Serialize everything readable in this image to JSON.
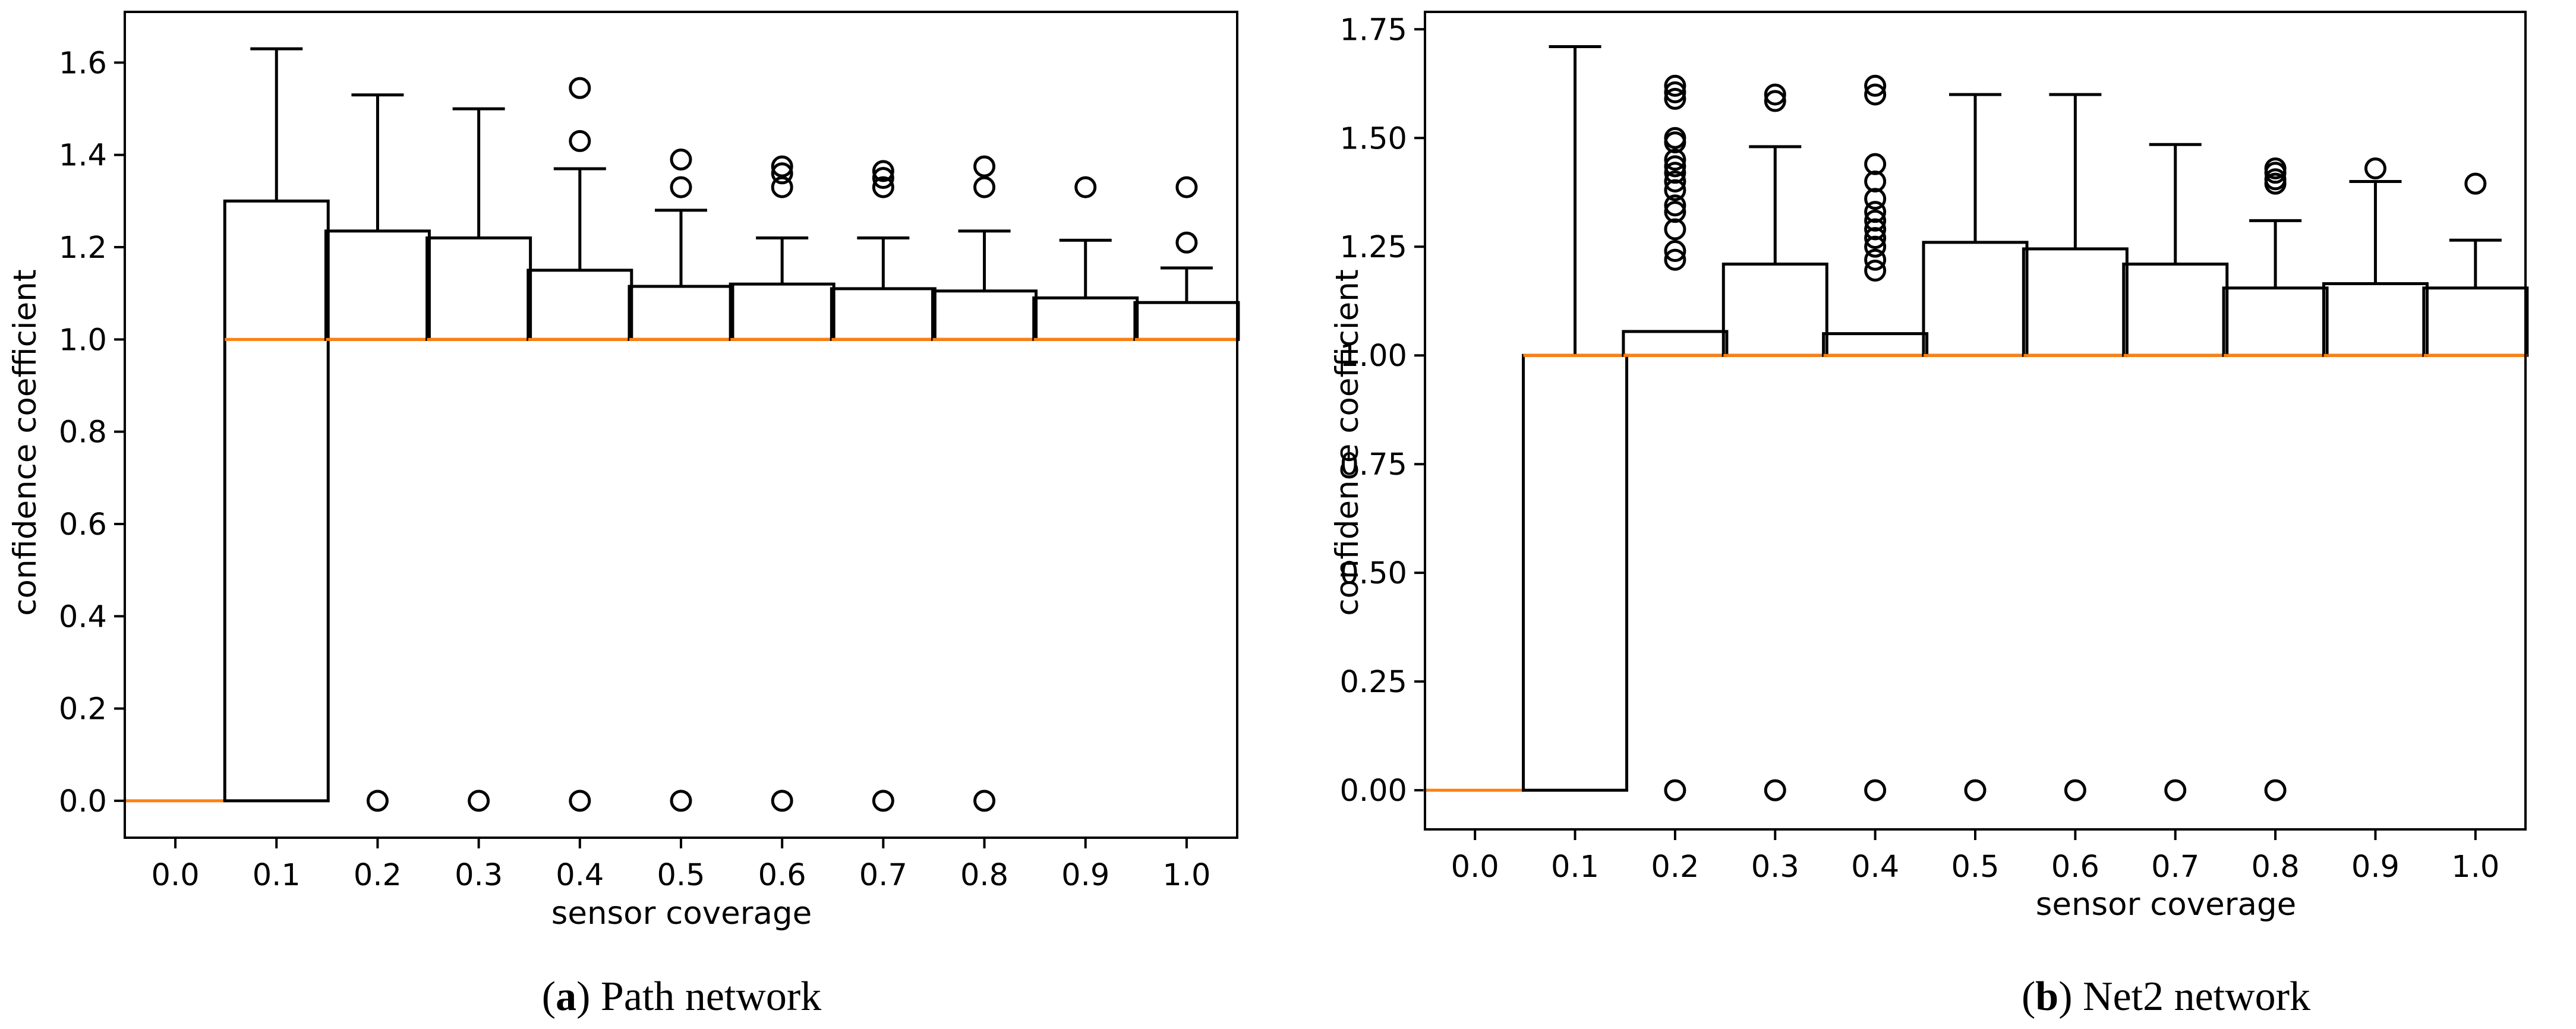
{
  "chart_data": [
    {
      "type": "boxplot",
      "caption": {
        "open": "(",
        "letter": "a",
        "close": ")",
        "text": " Path network"
      },
      "xlabel": "sensor coverage",
      "ylabel": "confidence coefficient",
      "ylim": [
        -0.08,
        1.71
      ],
      "yticks": [
        0.0,
        0.2,
        0.4,
        0.6,
        0.8,
        1.0,
        1.2,
        1.4,
        1.6
      ],
      "ytick_labels": [
        "0.0",
        "0.2",
        "0.4",
        "0.6",
        "0.8",
        "1.0",
        "1.2",
        "1.4",
        "1.6"
      ],
      "categories": [
        "0.0",
        "0.1",
        "0.2",
        "0.3",
        "0.4",
        "0.5",
        "0.6",
        "0.7",
        "0.8",
        "0.9",
        "1.0"
      ],
      "boxes": [
        {
          "q1": 0.0,
          "median": 0.0,
          "q3": 0.0,
          "whislo": 0.0,
          "whishi": 0.0,
          "fliers": []
        },
        {
          "q1": 0.0,
          "median": 1.0,
          "q3": 1.3,
          "whislo": 0.0,
          "whishi": 1.63,
          "fliers": []
        },
        {
          "q1": 1.0,
          "median": 1.0,
          "q3": 1.235,
          "whislo": 1.0,
          "whishi": 1.53,
          "fliers": [
            0.0
          ]
        },
        {
          "q1": 1.0,
          "median": 1.0,
          "q3": 1.22,
          "whislo": 1.0,
          "whishi": 1.5,
          "fliers": [
            0.0
          ]
        },
        {
          "q1": 1.0,
          "median": 1.0,
          "q3": 1.15,
          "whislo": 1.0,
          "whishi": 1.37,
          "fliers": [
            0.0,
            1.43,
            1.545
          ]
        },
        {
          "q1": 1.0,
          "median": 1.0,
          "q3": 1.115,
          "whislo": 1.0,
          "whishi": 1.28,
          "fliers": [
            0.0,
            1.33,
            1.39
          ]
        },
        {
          "q1": 1.0,
          "median": 1.0,
          "q3": 1.12,
          "whislo": 1.0,
          "whishi": 1.22,
          "fliers": [
            0.0,
            1.33,
            1.36,
            1.375
          ]
        },
        {
          "q1": 1.0,
          "median": 1.0,
          "q3": 1.11,
          "whislo": 1.0,
          "whishi": 1.22,
          "fliers": [
            0.0,
            1.33,
            1.35,
            1.365
          ]
        },
        {
          "q1": 1.0,
          "median": 1.0,
          "q3": 1.105,
          "whislo": 1.0,
          "whishi": 1.235,
          "fliers": [
            0.0,
            1.33,
            1.375
          ]
        },
        {
          "q1": 1.0,
          "median": 1.0,
          "q3": 1.09,
          "whislo": 1.0,
          "whishi": 1.215,
          "fliers": [
            1.33
          ]
        },
        {
          "q1": 1.0,
          "median": 1.0,
          "q3": 1.08,
          "whislo": 1.0,
          "whishi": 1.155,
          "fliers": [
            1.21,
            1.33
          ]
        }
      ]
    },
    {
      "type": "boxplot",
      "caption": {
        "open": "(",
        "letter": "b",
        "close": ")",
        "text": " Net2 network"
      },
      "xlabel": "sensor coverage",
      "ylabel": "confidence coefficient",
      "ylim": [
        -0.09,
        1.79
      ],
      "yticks": [
        0.0,
        0.25,
        0.5,
        0.75,
        1.0,
        1.25,
        1.5,
        1.75
      ],
      "ytick_labels": [
        "0.00",
        "0.25",
        "0.50",
        "0.75",
        "1.00",
        "1.25",
        "1.50",
        "1.75"
      ],
      "categories": [
        "0.0",
        "0.1",
        "0.2",
        "0.3",
        "0.4",
        "0.5",
        "0.6",
        "0.7",
        "0.8",
        "0.9",
        "1.0"
      ],
      "boxes": [
        {
          "q1": 0.0,
          "median": 0.0,
          "q3": 0.0,
          "whislo": 0.0,
          "whishi": 0.0,
          "fliers": []
        },
        {
          "q1": 0.0,
          "median": 1.0,
          "q3": 1.0,
          "whislo": 0.0,
          "whishi": 1.71,
          "fliers": []
        },
        {
          "q1": 1.0,
          "median": 1.0,
          "q3": 1.055,
          "whislo": 1.0,
          "whishi": 1.055,
          "fliers": [
            0.0,
            1.22,
            1.24,
            1.29,
            1.33,
            1.345,
            1.38,
            1.4,
            1.42,
            1.435,
            1.45,
            1.49,
            1.5,
            1.59,
            1.605,
            1.62
          ]
        },
        {
          "q1": 1.0,
          "median": 1.0,
          "q3": 1.21,
          "whislo": 1.0,
          "whishi": 1.48,
          "fliers": [
            0.0,
            1.585,
            1.6
          ]
        },
        {
          "q1": 1.0,
          "median": 1.0,
          "q3": 1.05,
          "whislo": 1.0,
          "whishi": 1.05,
          "fliers": [
            0.0,
            1.195,
            1.22,
            1.25,
            1.27,
            1.29,
            1.31,
            1.33,
            1.36,
            1.4,
            1.44,
            1.6,
            1.62
          ]
        },
        {
          "q1": 1.0,
          "median": 1.0,
          "q3": 1.26,
          "whislo": 1.0,
          "whishi": 1.6,
          "fliers": [
            0.0
          ]
        },
        {
          "q1": 1.0,
          "median": 1.0,
          "q3": 1.245,
          "whislo": 1.0,
          "whishi": 1.6,
          "fliers": [
            0.0
          ]
        },
        {
          "q1": 1.0,
          "median": 1.0,
          "q3": 1.21,
          "whislo": 1.0,
          "whishi": 1.485,
          "fliers": [
            0.0
          ]
        },
        {
          "q1": 1.0,
          "median": 1.0,
          "q3": 1.155,
          "whislo": 1.0,
          "whishi": 1.31,
          "fliers": [
            0.0,
            1.395,
            1.405,
            1.42,
            1.43
          ]
        },
        {
          "q1": 1.0,
          "median": 1.0,
          "q3": 1.165,
          "whislo": 1.0,
          "whishi": 1.4,
          "fliers": [
            1.43
          ]
        },
        {
          "q1": 1.0,
          "median": 1.0,
          "q3": 1.155,
          "whislo": 1.0,
          "whishi": 1.265,
          "fliers": [
            1.395
          ]
        }
      ]
    }
  ],
  "colors": {
    "median": "#ff7f0e",
    "box": "#000000",
    "background": "#ffffff"
  }
}
